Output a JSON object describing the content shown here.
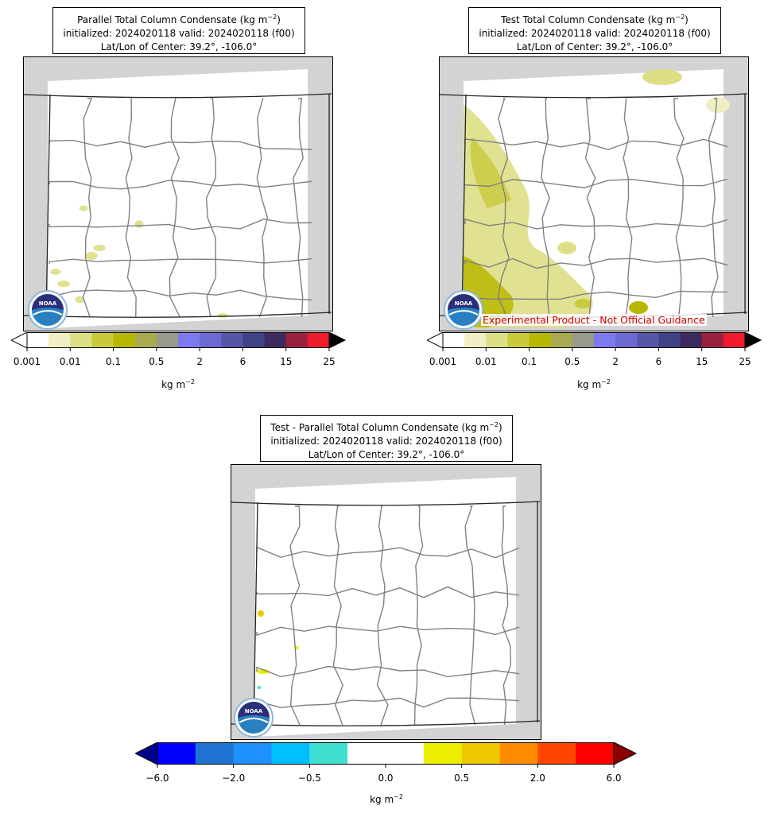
{
  "panels": [
    {
      "id": "parallel",
      "title_line1": "Parallel Total Column Condensate (kg m",
      "title_sup": "−2",
      "title_line1_end": ")",
      "title_line2": "initialized: 2024020118 valid: 2024020118 (f00)",
      "title_line3": "Lat/Lon of Center: 39.2°, -106.0°"
    },
    {
      "id": "test",
      "title_line1": "Test Total Column Condensate (kg m",
      "title_sup": "−2",
      "title_line1_end": ")",
      "title_line2": "initialized: 2024020118 valid: 2024020118 (f00)",
      "title_line3": "Lat/Lon of Center: 39.2°, -106.0°",
      "disclaimer": "Experimental Product - Not Official Guidance"
    },
    {
      "id": "diff",
      "title_line1": "Test - Parallel Total Column Condensate (kg m",
      "title_sup": "−2",
      "title_line1_end": ")",
      "title_line2": "initialized: 2024020118 valid: 2024020118 (f00)",
      "title_line3": "Lat/Lon of Center: 39.2°, -106.0°"
    }
  ],
  "colorbar_condensate": {
    "ticks": [
      "0.001",
      "0.01",
      "0.1",
      "0.5",
      "2",
      "6",
      "15",
      "25"
    ],
    "unit": "kg m",
    "unit_sup": "−2",
    "colors": [
      "#ffffff",
      "#f0eec4",
      "#dede86",
      "#c9c93c",
      "#b7b700",
      "#a9a950",
      "#9a9a8c",
      "#7b7bef",
      "#6a6ad0",
      "#5656a8",
      "#414187",
      "#3b2b5e",
      "#9a2040",
      "#ee1c2c"
    ],
    "over_color": "#000000",
    "under_color": "#ffffff"
  },
  "colorbar_diff": {
    "ticks": [
      "−6.0",
      "−2.0",
      "−0.5",
      "0.0",
      "0.5",
      "2.0",
      "6.0"
    ],
    "unit": "kg m",
    "unit_sup": "−2",
    "colors": [
      "#0000ff",
      "#1e73d2",
      "#1e90ff",
      "#00bfff",
      "#40e0d0",
      "#ffffff",
      "#ffffff",
      "#eeee00",
      "#eec900",
      "#ff8c00",
      "#ff4500",
      "#ff0000"
    ],
    "over_color": "#8b0000",
    "under_color": "#00008b"
  },
  "logo": {
    "text": "NOAA"
  }
}
